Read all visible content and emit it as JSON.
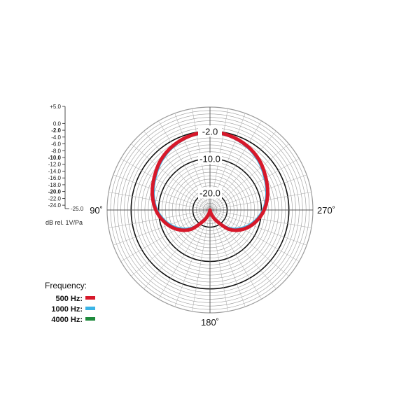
{
  "chart_data": {
    "type": "polar",
    "r_min": -25,
    "r_max": 5,
    "scale_ticks": [
      {
        "label": "+5.0",
        "value": 5,
        "bold": false
      },
      {
        "label": "0.0",
        "value": 0,
        "bold": false
      },
      {
        "label": "-2.0",
        "value": -2,
        "bold": true
      },
      {
        "label": "-4.0",
        "value": -4,
        "bold": false
      },
      {
        "label": "-6.0",
        "value": -6,
        "bold": false
      },
      {
        "label": "-8.0",
        "value": -8,
        "bold": false
      },
      {
        "label": "-10.0",
        "value": -10,
        "bold": true
      },
      {
        "label": "-12.0",
        "value": -12,
        "bold": false
      },
      {
        "label": "-14.0",
        "value": -14,
        "bold": false
      },
      {
        "label": "-16.0",
        "value": -16,
        "bold": false
      },
      {
        "label": "-18.0",
        "value": -18,
        "bold": false
      },
      {
        "label": "-20.0",
        "value": -20,
        "bold": true
      },
      {
        "label": "-22.0",
        "value": -22,
        "bold": false
      },
      {
        "label": "-24.0",
        "value": -24,
        "bold": false
      },
      {
        "label": "-25.0",
        "value": -25,
        "bold": false
      }
    ],
    "scale_unit": "dB rel. 1V/Pa",
    "rings": [
      {
        "label": "-2.0",
        "value": -2
      },
      {
        "label": "-10.0",
        "value": -10
      },
      {
        "label": "-20.0",
        "value": -20
      }
    ],
    "angle_labels": [
      {
        "label": "90˚",
        "angle": 90
      },
      {
        "label": "180˚",
        "angle": 180
      },
      {
        "label": "270˚",
        "angle": 270
      }
    ],
    "legend_title": "Frequency:",
    "series": [
      {
        "name": "500 Hz:",
        "color": "#d7182a",
        "angles": [
          0,
          15,
          30,
          45,
          60,
          75,
          90,
          105,
          120,
          135,
          150,
          165,
          180,
          195,
          210,
          225,
          240,
          255,
          270,
          285,
          300,
          315,
          330,
          345
        ],
        "values": [
          -2.2,
          -2.6,
          -3.4,
          -4.6,
          -6.2,
          -7.6,
          -9.2,
          -11.3,
          -13.8,
          -17.0,
          -21.5,
          -24.0,
          -25,
          -24.0,
          -21.5,
          -17.0,
          -13.8,
          -11.3,
          -9.2,
          -7.6,
          -6.2,
          -4.6,
          -3.4,
          -2.6
        ]
      },
      {
        "name": "1000 Hz:",
        "color": "#3bb4e6",
        "angles": [
          0,
          15,
          30,
          45,
          60,
          75,
          90,
          105,
          120,
          135,
          150,
          165,
          180,
          195,
          210,
          225,
          240,
          255,
          270,
          285,
          300,
          315,
          330,
          345
        ],
        "values": [
          -2.4,
          -2.8,
          -3.7,
          -5.0,
          -6.6,
          -8.0,
          -9.6,
          -11.8,
          -14.5,
          -17.8,
          -22.2,
          -24.5,
          -25,
          -24.5,
          -22.2,
          -17.8,
          -14.5,
          -11.8,
          -9.6,
          -8.0,
          -6.6,
          -5.0,
          -3.7,
          -2.8
        ]
      },
      {
        "name": "4000 Hz:",
        "color": "#1f8a3c",
        "angles": [
          0,
          15,
          30,
          45,
          60,
          75,
          90,
          105,
          120,
          135,
          150,
          165,
          180,
          195,
          210,
          225,
          240,
          255,
          270,
          285,
          300,
          315,
          330,
          345
        ],
        "values": [
          -2.3,
          -2.7,
          -3.5,
          -4.8,
          -6.4,
          -7.8,
          -9.4,
          -11.5,
          -14.0,
          -17.3,
          -21.8,
          -24.2,
          -25,
          -24.2,
          -21.8,
          -17.3,
          -14.0,
          -11.5,
          -9.4,
          -7.8,
          -6.4,
          -4.8,
          -3.5,
          -2.7
        ]
      }
    ]
  }
}
